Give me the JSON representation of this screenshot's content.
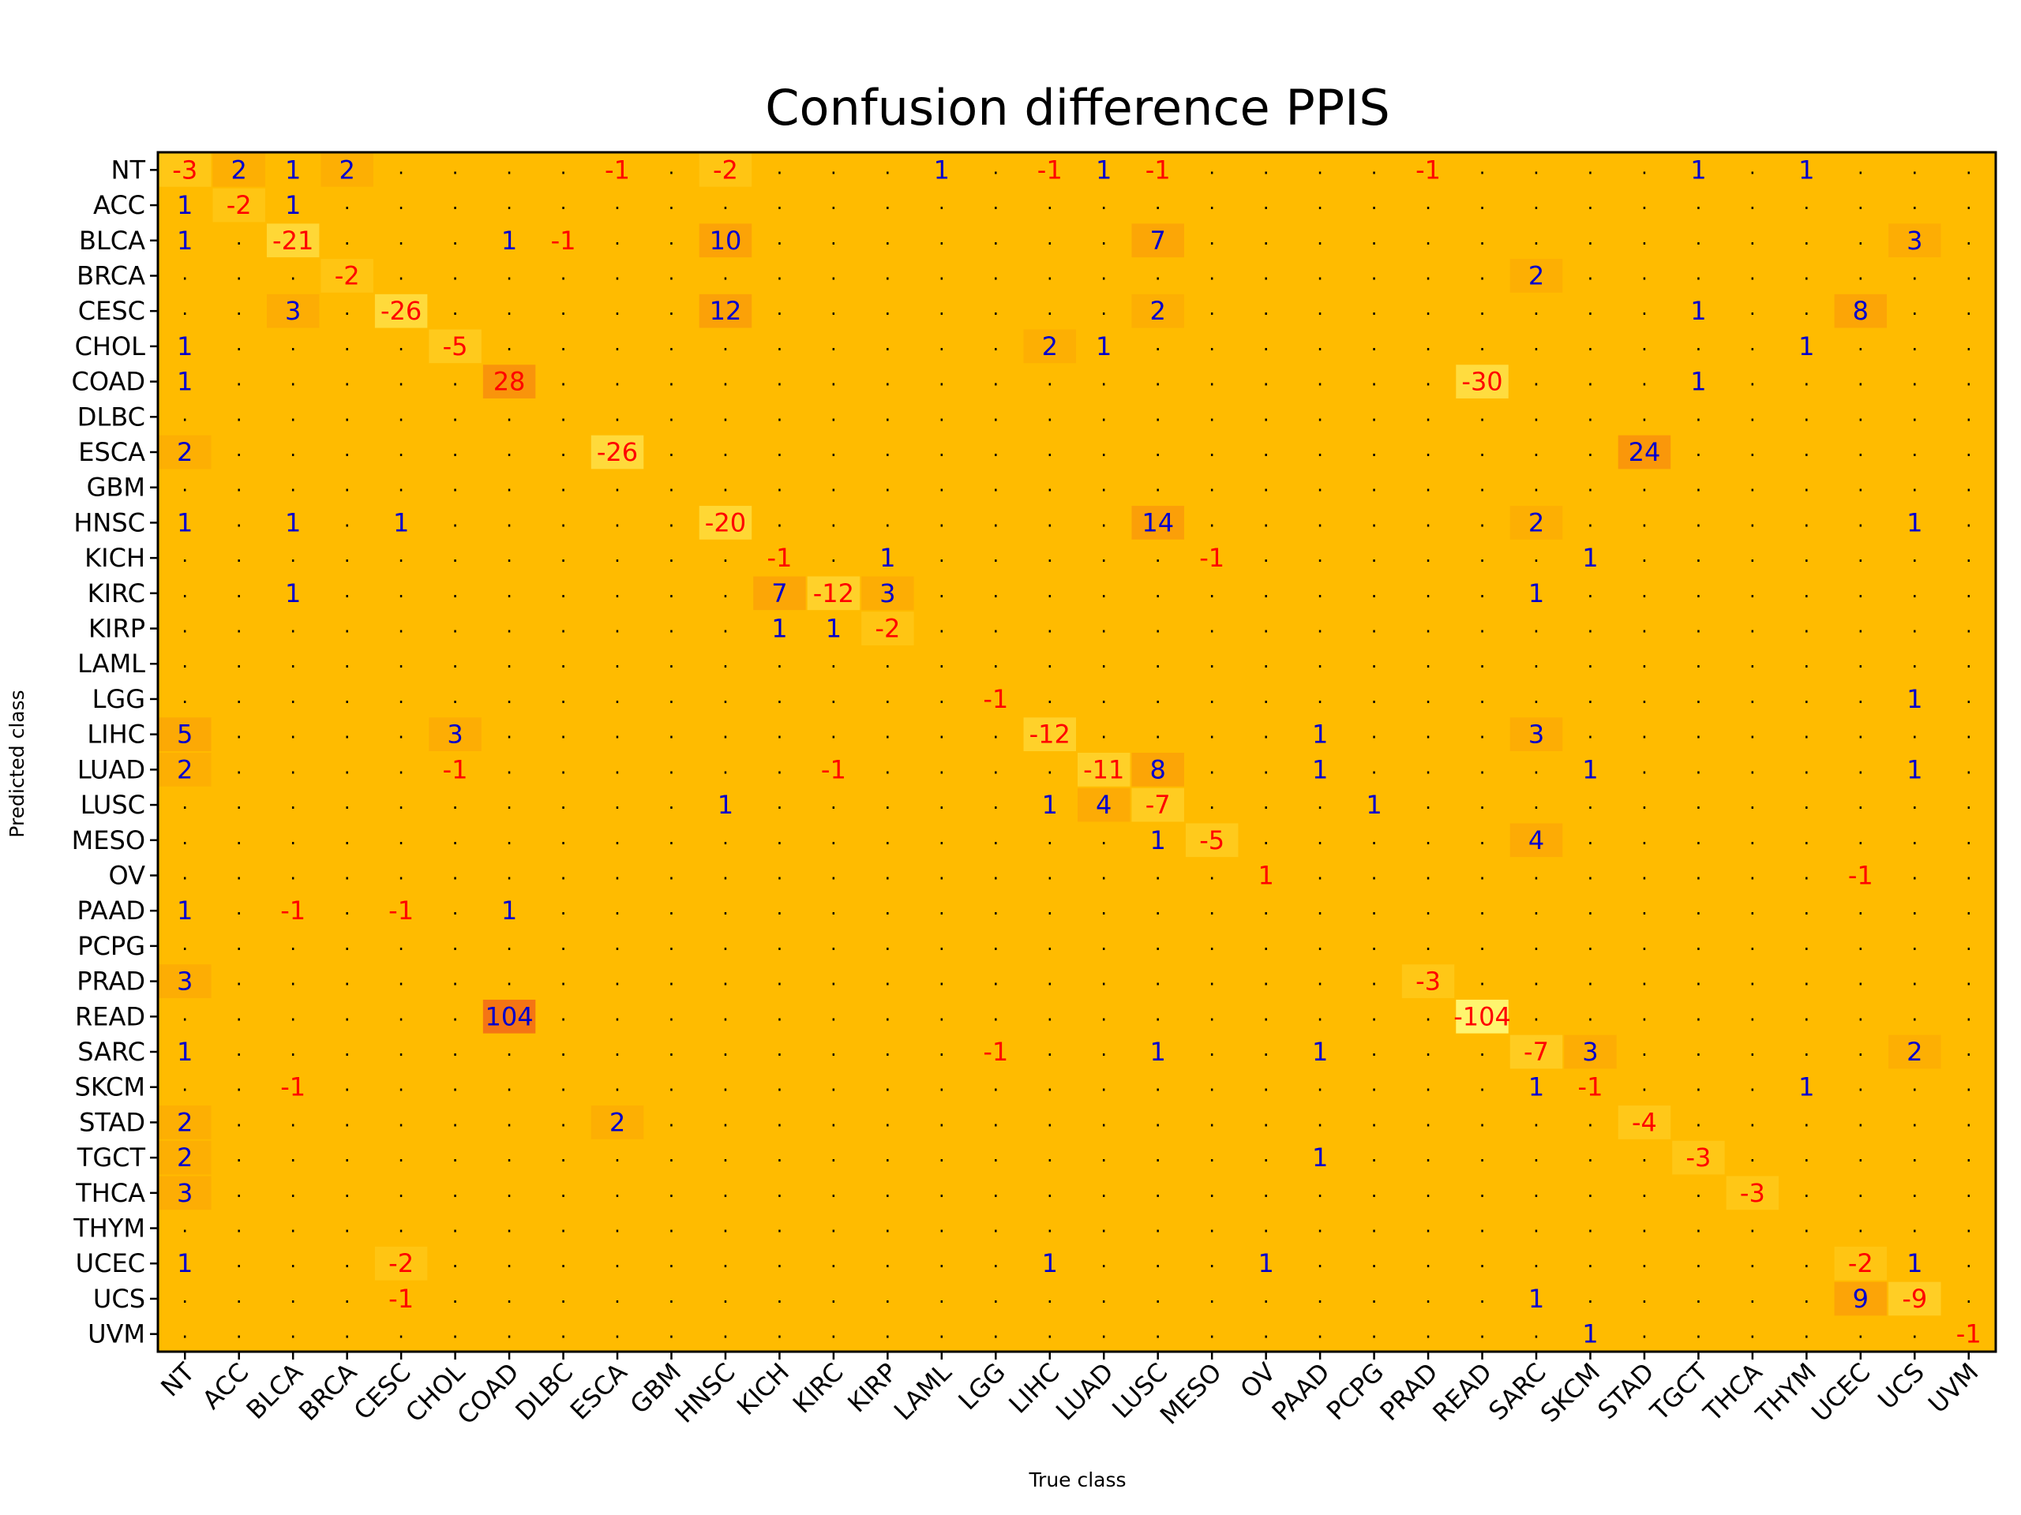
{
  "chart_data": {
    "type": "heatmap",
    "title": "Confusion difference PPIS",
    "xlabel": "True class",
    "ylabel": "Predicted class",
    "classes": [
      "NT",
      "ACC",
      "BLCA",
      "BRCA",
      "CESC",
      "CHOL",
      "COAD",
      "DLBC",
      "ESCA",
      "GBM",
      "HNSC",
      "KICH",
      "KIRC",
      "KIRP",
      "LAML",
      "LGG",
      "LIHC",
      "LUAD",
      "LUSC",
      "MESO",
      "OV",
      "PAAD",
      "PCPG",
      "PRAD",
      "READ",
      "SARC",
      "SKCM",
      "STAD",
      "TGCT",
      "THCA",
      "THYM",
      "UCEC",
      "UCS",
      "UVM"
    ],
    "zero_symbol": ".",
    "colors": {
      "negative_text": "#ff0000",
      "positive_text": "#0000cc",
      "background": "#ffbb00",
      "frame": "#000000"
    },
    "cells": [
      {
        "row": "NT",
        "col": "NT",
        "value": -3
      },
      {
        "row": "NT",
        "col": "ACC",
        "value": 2
      },
      {
        "row": "NT",
        "col": "BLCA",
        "value": 1
      },
      {
        "row": "NT",
        "col": "BRCA",
        "value": 2
      },
      {
        "row": "NT",
        "col": "ESCA",
        "value": -1
      },
      {
        "row": "NT",
        "col": "HNSC",
        "value": -2
      },
      {
        "row": "NT",
        "col": "LAML",
        "value": 1
      },
      {
        "row": "NT",
        "col": "LIHC",
        "value": -1
      },
      {
        "row": "NT",
        "col": "LUAD",
        "value": 1
      },
      {
        "row": "NT",
        "col": "LUSC",
        "value": -1
      },
      {
        "row": "NT",
        "col": "PRAD",
        "value": -1
      },
      {
        "row": "NT",
        "col": "TGCT",
        "value": 1
      },
      {
        "row": "NT",
        "col": "THYM",
        "value": 1
      },
      {
        "row": "ACC",
        "col": "NT",
        "value": 1
      },
      {
        "row": "ACC",
        "col": "ACC",
        "value": -2
      },
      {
        "row": "ACC",
        "col": "BLCA",
        "value": 1
      },
      {
        "row": "BLCA",
        "col": "NT",
        "value": 1
      },
      {
        "row": "BLCA",
        "col": "BLCA",
        "value": -21
      },
      {
        "row": "BLCA",
        "col": "COAD",
        "value": 1
      },
      {
        "row": "BLCA",
        "col": "DLBC",
        "value": -1
      },
      {
        "row": "BLCA",
        "col": "HNSC",
        "value": 10
      },
      {
        "row": "BLCA",
        "col": "LUSC",
        "value": 7
      },
      {
        "row": "BLCA",
        "col": "UCS",
        "value": 3
      },
      {
        "row": "BRCA",
        "col": "BRCA",
        "value": -2
      },
      {
        "row": "BRCA",
        "col": "SARC",
        "value": 2
      },
      {
        "row": "CESC",
        "col": "BLCA",
        "value": 3
      },
      {
        "row": "CESC",
        "col": "CESC",
        "value": -26
      },
      {
        "row": "CESC",
        "col": "HNSC",
        "value": 12
      },
      {
        "row": "CESC",
        "col": "LUSC",
        "value": 2
      },
      {
        "row": "CESC",
        "col": "TGCT",
        "value": 1
      },
      {
        "row": "CESC",
        "col": "UCEC",
        "value": 8
      },
      {
        "row": "CHOL",
        "col": "NT",
        "value": 1
      },
      {
        "row": "CHOL",
        "col": "CHOL",
        "value": -5
      },
      {
        "row": "CHOL",
        "col": "LIHC",
        "value": 2
      },
      {
        "row": "CHOL",
        "col": "LUAD",
        "value": 1
      },
      {
        "row": "CHOL",
        "col": "THYM",
        "value": 1
      },
      {
        "row": "COAD",
        "col": "NT",
        "value": 1
      },
      {
        "row": "COAD",
        "col": "COAD",
        "value": 28
      },
      {
        "row": "COAD",
        "col": "READ",
        "value": -30
      },
      {
        "row": "COAD",
        "col": "TGCT",
        "value": 1
      },
      {
        "row": "ESCA",
        "col": "NT",
        "value": 2
      },
      {
        "row": "ESCA",
        "col": "ESCA",
        "value": -26
      },
      {
        "row": "ESCA",
        "col": "STAD",
        "value": 24
      },
      {
        "row": "HNSC",
        "col": "NT",
        "value": 1
      },
      {
        "row": "HNSC",
        "col": "BLCA",
        "value": 1
      },
      {
        "row": "HNSC",
        "col": "CESC",
        "value": 1
      },
      {
        "row": "HNSC",
        "col": "HNSC",
        "value": -20
      },
      {
        "row": "HNSC",
        "col": "LUSC",
        "value": 14
      },
      {
        "row": "HNSC",
        "col": "SARC",
        "value": 2
      },
      {
        "row": "HNSC",
        "col": "UCS",
        "value": 1
      },
      {
        "row": "KICH",
        "col": "KICH",
        "value": -1
      },
      {
        "row": "KICH",
        "col": "KIRP",
        "value": 1
      },
      {
        "row": "KICH",
        "col": "MESO",
        "value": -1
      },
      {
        "row": "KICH",
        "col": "SKCM",
        "value": 1
      },
      {
        "row": "KIRC",
        "col": "BLCA",
        "value": 1
      },
      {
        "row": "KIRC",
        "col": "KICH",
        "value": 7
      },
      {
        "row": "KIRC",
        "col": "KIRC",
        "value": -12
      },
      {
        "row": "KIRC",
        "col": "KIRP",
        "value": 3
      },
      {
        "row": "KIRC",
        "col": "SARC",
        "value": 1
      },
      {
        "row": "KIRP",
        "col": "KICH",
        "value": 1
      },
      {
        "row": "KIRP",
        "col": "KIRC",
        "value": 1
      },
      {
        "row": "KIRP",
        "col": "KIRP",
        "value": -2
      },
      {
        "row": "LGG",
        "col": "LGG",
        "value": -1
      },
      {
        "row": "LGG",
        "col": "UCS",
        "value": 1
      },
      {
        "row": "LIHC",
        "col": "NT",
        "value": 5
      },
      {
        "row": "LIHC",
        "col": "CHOL",
        "value": 3
      },
      {
        "row": "LIHC",
        "col": "LIHC",
        "value": -12
      },
      {
        "row": "LIHC",
        "col": "PAAD",
        "value": 1
      },
      {
        "row": "LIHC",
        "col": "SARC",
        "value": 3
      },
      {
        "row": "LUAD",
        "col": "NT",
        "value": 2
      },
      {
        "row": "LUAD",
        "col": "CHOL",
        "value": -1
      },
      {
        "row": "LUAD",
        "col": "KIRC",
        "value": -1
      },
      {
        "row": "LUAD",
        "col": "LUAD",
        "value": -11
      },
      {
        "row": "LUAD",
        "col": "LUSC",
        "value": 8
      },
      {
        "row": "LUAD",
        "col": "PAAD",
        "value": 1
      },
      {
        "row": "LUAD",
        "col": "SKCM",
        "value": 1
      },
      {
        "row": "LUAD",
        "col": "UCS",
        "value": 1
      },
      {
        "row": "LUSC",
        "col": "HNSC",
        "value": 1
      },
      {
        "row": "LUSC",
        "col": "LIHC",
        "value": 1
      },
      {
        "row": "LUSC",
        "col": "LUAD",
        "value": 4
      },
      {
        "row": "LUSC",
        "col": "LUSC",
        "value": -7
      },
      {
        "row": "LUSC",
        "col": "PCPG",
        "value": 1
      },
      {
        "row": "MESO",
        "col": "LUSC",
        "value": 1
      },
      {
        "row": "MESO",
        "col": "MESO",
        "value": -5
      },
      {
        "row": "MESO",
        "col": "SARC",
        "value": 4
      },
      {
        "row": "OV",
        "col": "OV",
        "value": 1
      },
      {
        "row": "OV",
        "col": "UCEC",
        "value": -1
      },
      {
        "row": "PAAD",
        "col": "NT",
        "value": 1
      },
      {
        "row": "PAAD",
        "col": "BLCA",
        "value": -1
      },
      {
        "row": "PAAD",
        "col": "CESC",
        "value": -1
      },
      {
        "row": "PAAD",
        "col": "COAD",
        "value": 1
      },
      {
        "row": "PRAD",
        "col": "NT",
        "value": 3
      },
      {
        "row": "PRAD",
        "col": "PRAD",
        "value": -3
      },
      {
        "row": "READ",
        "col": "COAD",
        "value": 104
      },
      {
        "row": "READ",
        "col": "READ",
        "value": -104
      },
      {
        "row": "SARC",
        "col": "NT",
        "value": 1
      },
      {
        "row": "SARC",
        "col": "LGG",
        "value": -1
      },
      {
        "row": "SARC",
        "col": "LUSC",
        "value": 1
      },
      {
        "row": "SARC",
        "col": "PAAD",
        "value": 1
      },
      {
        "row": "SARC",
        "col": "SARC",
        "value": -7
      },
      {
        "row": "SARC",
        "col": "SKCM",
        "value": 3
      },
      {
        "row": "SARC",
        "col": "UCS",
        "value": 2
      },
      {
        "row": "SKCM",
        "col": "BLCA",
        "value": -1
      },
      {
        "row": "SKCM",
        "col": "SARC",
        "value": 1
      },
      {
        "row": "SKCM",
        "col": "SKCM",
        "value": -1
      },
      {
        "row": "SKCM",
        "col": "THYM",
        "value": 1
      },
      {
        "row": "STAD",
        "col": "NT",
        "value": 2
      },
      {
        "row": "STAD",
        "col": "ESCA",
        "value": 2
      },
      {
        "row": "STAD",
        "col": "STAD",
        "value": -4
      },
      {
        "row": "TGCT",
        "col": "NT",
        "value": 2
      },
      {
        "row": "TGCT",
        "col": "PAAD",
        "value": 1
      },
      {
        "row": "TGCT",
        "col": "TGCT",
        "value": -3
      },
      {
        "row": "THCA",
        "col": "NT",
        "value": 3
      },
      {
        "row": "THCA",
        "col": "THCA",
        "value": -3
      },
      {
        "row": "UCEC",
        "col": "NT",
        "value": 1
      },
      {
        "row": "UCEC",
        "col": "CESC",
        "value": -2
      },
      {
        "row": "UCEC",
        "col": "LIHC",
        "value": 1
      },
      {
        "row": "UCEC",
        "col": "OV",
        "value": 1
      },
      {
        "row": "UCEC",
        "col": "UCEC",
        "value": -2
      },
      {
        "row": "UCEC",
        "col": "UCS",
        "value": 1
      },
      {
        "row": "UCS",
        "col": "CESC",
        "value": -1
      },
      {
        "row": "UCS",
        "col": "SARC",
        "value": 1
      },
      {
        "row": "UCS",
        "col": "UCEC",
        "value": 9
      },
      {
        "row": "UCS",
        "col": "UCS",
        "value": -9
      },
      {
        "row": "UVM",
        "col": "SKCM",
        "value": 1
      },
      {
        "row": "UVM",
        "col": "UVM",
        "value": -1
      }
    ]
  }
}
